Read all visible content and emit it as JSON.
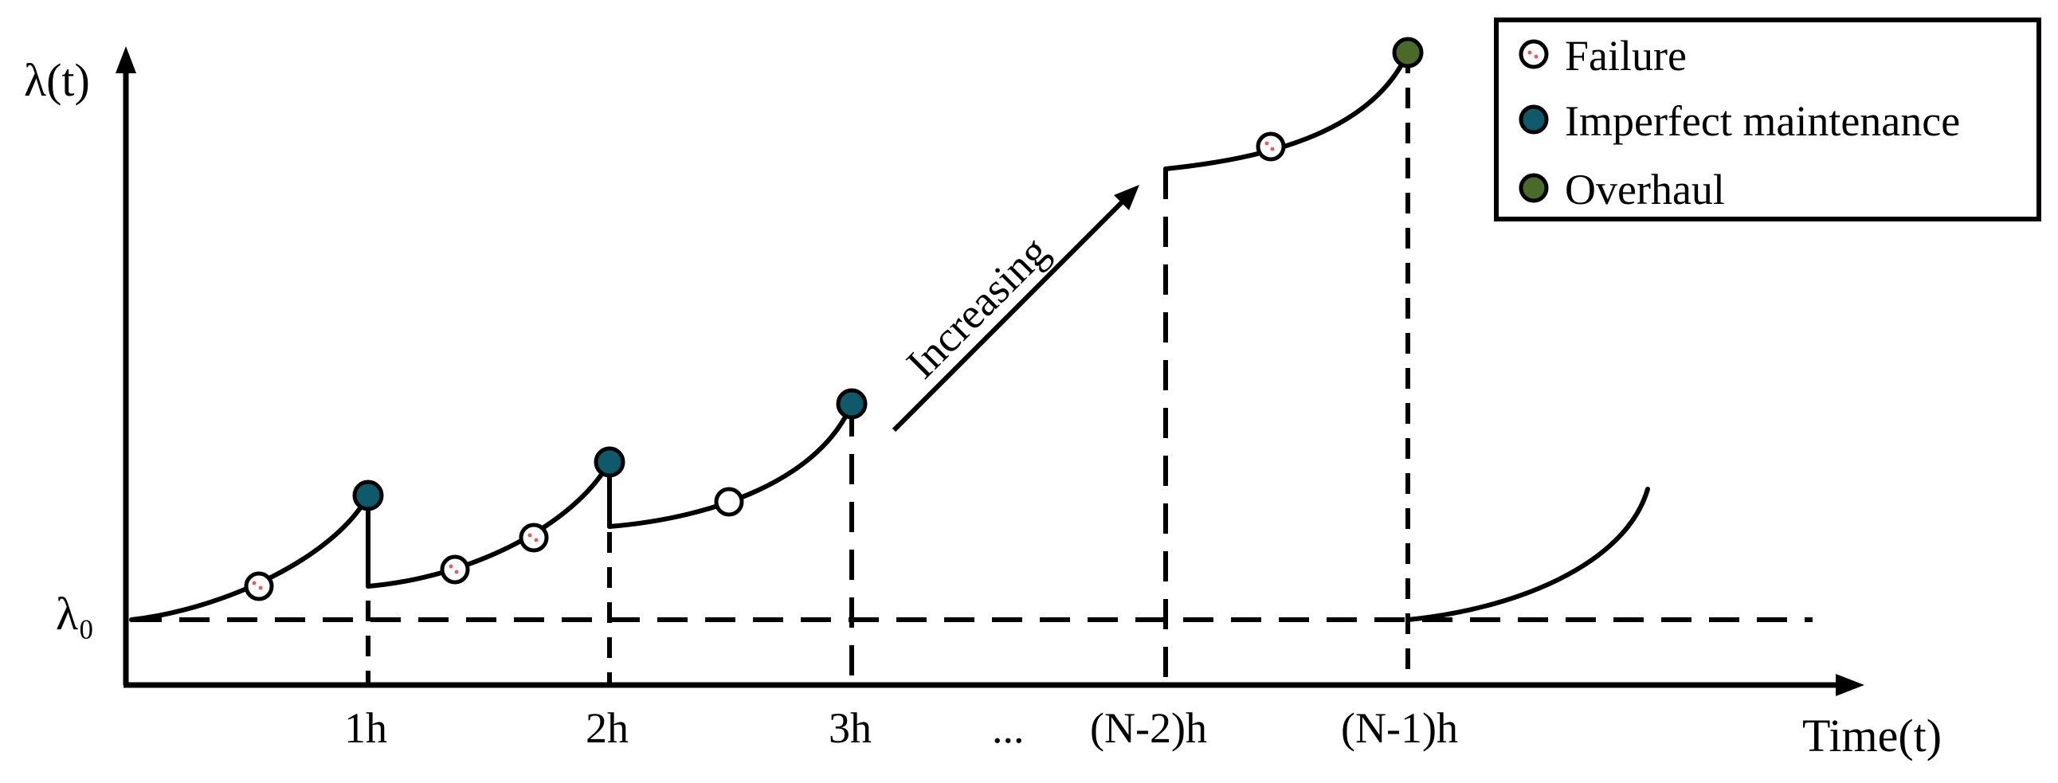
{
  "axes": {
    "y_label": "λ(t)",
    "x_label": "Time(t)",
    "baseline_label": "λ₀"
  },
  "ticks": [
    "1h",
    "2h",
    "3h",
    "...",
    "(N-2)h",
    "(N-1)h"
  ],
  "annotation": {
    "text": "Increasing"
  },
  "legend": {
    "items": [
      {
        "label": "Failure",
        "color": "#ffffff",
        "icon": "failure-marker-icon"
      },
      {
        "label": "Imperfect maintenance",
        "color": "#0e5a6a",
        "icon": "imperfect-maintenance-marker-icon"
      },
      {
        "label": "Overhaul",
        "color": "#4a6a2a",
        "icon": "overhaul-marker-icon"
      }
    ]
  },
  "colors": {
    "failure_fill": "#ffffff",
    "failure_speckle": "#e06060",
    "imperfect_maintenance_fill": "#0e5a6a",
    "overhaul_fill": "#4a6a2a",
    "line": "#000000"
  }
}
